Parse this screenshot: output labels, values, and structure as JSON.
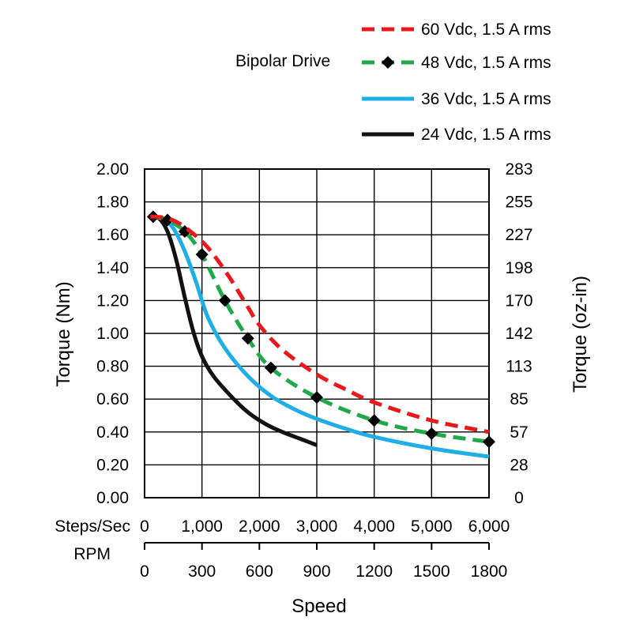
{
  "chart_data": {
    "type": "line",
    "title": "Bipolar Drive",
    "xlabel": "Speed",
    "ylabel": "Torque (Nm)",
    "ylabel_right": "Torque (oz-in)",
    "x_unit_labels": [
      "Steps/Sec",
      "RPM"
    ],
    "xlim": [
      0,
      6000
    ],
    "ylim": [
      0,
      2.0
    ],
    "grid": true,
    "legend_position": "top-right",
    "x_ticks": [
      {
        "value": 0,
        "label": "0"
      },
      {
        "value": 1000,
        "label": "1,000"
      },
      {
        "value": 2000,
        "label": "2,000"
      },
      {
        "value": 3000,
        "label": "3,000"
      },
      {
        "value": 4000,
        "label": "4,000"
      },
      {
        "value": 5000,
        "label": "5,000"
      },
      {
        "value": 6000,
        "label": "6,000"
      }
    ],
    "rpm_ticks": [
      {
        "value": 0,
        "label": "0"
      },
      {
        "value": 1000,
        "label": "300"
      },
      {
        "value": 2000,
        "label": "600"
      },
      {
        "value": 3000,
        "label": "900"
      },
      {
        "value": 4000,
        "label": "1200"
      },
      {
        "value": 5000,
        "label": "1500"
      },
      {
        "value": 6000,
        "label": "1800"
      }
    ],
    "y_ticks": [
      {
        "value": 0,
        "label": "0.00"
      },
      {
        "value": 0.2,
        "label": "0.20"
      },
      {
        "value": 0.4,
        "label": "0.40"
      },
      {
        "value": 0.6,
        "label": "0.60"
      },
      {
        "value": 0.8,
        "label": "0.80"
      },
      {
        "value": 1.0,
        "label": "1.00"
      },
      {
        "value": 1.2,
        "label": "1.20"
      },
      {
        "value": 1.4,
        "label": "1.40"
      },
      {
        "value": 1.6,
        "label": "1.60"
      },
      {
        "value": 1.8,
        "label": "1.80"
      },
      {
        "value": 2.0,
        "label": "2.00"
      }
    ],
    "y_ticks_right": [
      {
        "value": 0,
        "label": "0"
      },
      {
        "value": 0.2,
        "label": "28"
      },
      {
        "value": 0.4,
        "label": "57"
      },
      {
        "value": 0.6,
        "label": "85"
      },
      {
        "value": 0.8,
        "label": "113"
      },
      {
        "value": 1.0,
        "label": "142"
      },
      {
        "value": 1.2,
        "label": "170"
      },
      {
        "value": 1.4,
        "label": "198"
      },
      {
        "value": 1.6,
        "label": "227"
      },
      {
        "value": 1.8,
        "label": "255"
      },
      {
        "value": 2.0,
        "label": "283"
      }
    ],
    "series": [
      {
        "name": "60 Vdc, 1.5 A rms",
        "color": "#e8191d",
        "style": "dashed",
        "markers": false,
        "x": [
          100,
          200,
          400,
          600,
          800,
          1000,
          1200,
          1500,
          1800,
          2000,
          2400,
          3000,
          3500,
          4000,
          5000,
          6000
        ],
        "y": [
          1.71,
          1.71,
          1.7,
          1.67,
          1.62,
          1.56,
          1.48,
          1.33,
          1.16,
          1.05,
          0.9,
          0.75,
          0.66,
          0.58,
          0.47,
          0.4
        ]
      },
      {
        "name": "48 Vdc, 1.5 A rms",
        "color": "#20a84a",
        "style": "dashed",
        "markers": true,
        "x": [
          150,
          400,
          700,
          1000,
          1400,
          1800,
          2200,
          3000,
          4000,
          5000,
          6000
        ],
        "y": [
          1.71,
          1.69,
          1.62,
          1.48,
          1.2,
          0.97,
          0.79,
          0.61,
          0.47,
          0.39,
          0.34
        ]
      },
      {
        "name": "36 Vdc, 1.5 A rms",
        "color": "#1faee6",
        "style": "solid",
        "markers": false,
        "x": [
          150,
          300,
          500,
          700,
          900,
          1100,
          1400,
          1800,
          2200,
          2600,
          3000,
          3500,
          4000,
          5000,
          6000
        ],
        "y": [
          1.71,
          1.7,
          1.64,
          1.5,
          1.31,
          1.1,
          0.91,
          0.74,
          0.62,
          0.54,
          0.48,
          0.42,
          0.37,
          0.3,
          0.25
        ]
      },
      {
        "name": "24 Vdc, 1.5 A rms",
        "color": "#111111",
        "style": "solid",
        "markers": false,
        "x": [
          100,
          250,
          400,
          550,
          700,
          850,
          1000,
          1200,
          1500,
          1800,
          2100,
          2400,
          2700,
          3000
        ],
        "y": [
          1.71,
          1.7,
          1.62,
          1.45,
          1.22,
          1.01,
          0.86,
          0.74,
          0.62,
          0.52,
          0.45,
          0.4,
          0.36,
          0.32
        ]
      }
    ]
  }
}
